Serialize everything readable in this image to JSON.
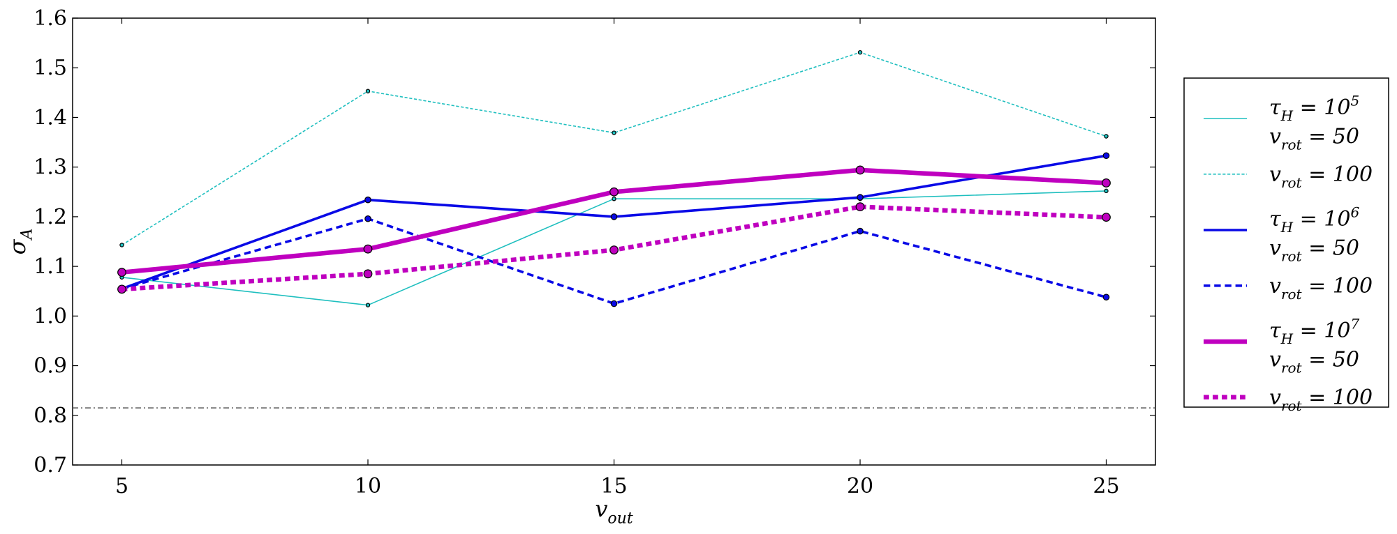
{
  "chart_data": {
    "type": "line",
    "title": "",
    "xlabel": "v_out",
    "ylabel": "σ_A",
    "x": [
      5,
      10,
      15,
      20,
      25
    ],
    "xlim": [
      4,
      26
    ],
    "ylim": [
      0.7,
      1.6
    ],
    "xticks": [
      5,
      10,
      15,
      20,
      25
    ],
    "yticks": [
      0.7,
      0.8,
      0.9,
      1.0,
      1.1,
      1.2,
      1.3,
      1.4,
      1.5,
      1.6
    ],
    "grid": false,
    "legend_position": "outside-right",
    "reference_line": {
      "y": 0.815,
      "style": "dash-dot",
      "color": "#555555"
    },
    "series": [
      {
        "legend_lines": [
          "τ_H = 10^5",
          "v_rot = 50"
        ],
        "values": [
          1.078,
          1.022,
          1.236,
          1.236,
          1.252
        ],
        "color": "#1fbfbf",
        "style": "solid",
        "width": "thin"
      },
      {
        "legend_lines": [
          "v_rot = 100"
        ],
        "values": [
          1.143,
          1.453,
          1.369,
          1.531,
          1.362
        ],
        "color": "#1fbfbf",
        "style": "dashed",
        "width": "thin"
      },
      {
        "legend_lines": [
          "τ_H = 10^6",
          "v_rot = 50"
        ],
        "values": [
          1.055,
          1.234,
          1.2,
          1.239,
          1.323
        ],
        "color": "#0a0ae6",
        "style": "solid",
        "width": "medium"
      },
      {
        "legend_lines": [
          "v_rot = 100"
        ],
        "values": [
          1.055,
          1.196,
          1.025,
          1.171,
          1.038
        ],
        "color": "#0a0ae6",
        "style": "dashed",
        "width": "medium"
      },
      {
        "legend_lines": [
          "τ_H = 10^7",
          "v_rot = 50"
        ],
        "values": [
          1.088,
          1.135,
          1.25,
          1.294,
          1.268
        ],
        "color": "#bf00bf",
        "style": "solid",
        "width": "thick"
      },
      {
        "legend_lines": [
          "v_rot = 100"
        ],
        "values": [
          1.054,
          1.085,
          1.133,
          1.22,
          1.199
        ],
        "color": "#bf00bf",
        "style": "dotted",
        "width": "thick"
      }
    ]
  }
}
